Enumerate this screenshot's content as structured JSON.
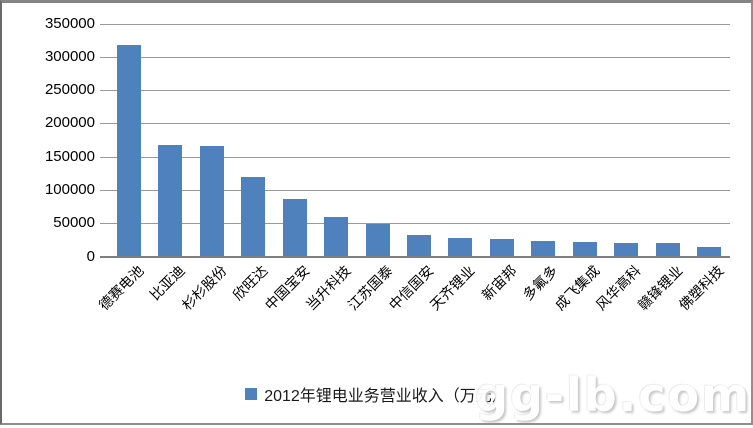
{
  "chart_data": {
    "type": "bar",
    "title": "",
    "categories": [
      "德赛电池",
      "比亚迪",
      "杉杉股份",
      "欣旺达",
      "中国宝安",
      "当升科技",
      "江苏国泰",
      "中信国安",
      "天齐锂业",
      "新宙邦",
      "多氟多",
      "成飞集成",
      "风华高科",
      "赣锋锂业",
      "佛塑科技"
    ],
    "values": [
      318000,
      168000,
      166000,
      120000,
      87000,
      60000,
      49000,
      32000,
      28000,
      26000,
      23000,
      22000,
      21000,
      20000,
      14000
    ],
    "legend": "2012年锂电业务营业收入（万元）",
    "legend_position": "bottom",
    "xlabel": "",
    "ylabel": "",
    "ylim": [
      0,
      350000
    ],
    "ytick_step": 50000,
    "yticks": [
      "0",
      "50000",
      "100000",
      "150000",
      "200000",
      "250000",
      "300000",
      "350000"
    ],
    "grid": true,
    "bar_color": "#4F81BD"
  },
  "watermark": "gg-lb.com",
  "colors": {
    "bar": "#4F81BD",
    "gridline": "#9a9a9a",
    "axis": "#7f7f7f",
    "frame_border": "#848484",
    "background": "#ffffff"
  }
}
